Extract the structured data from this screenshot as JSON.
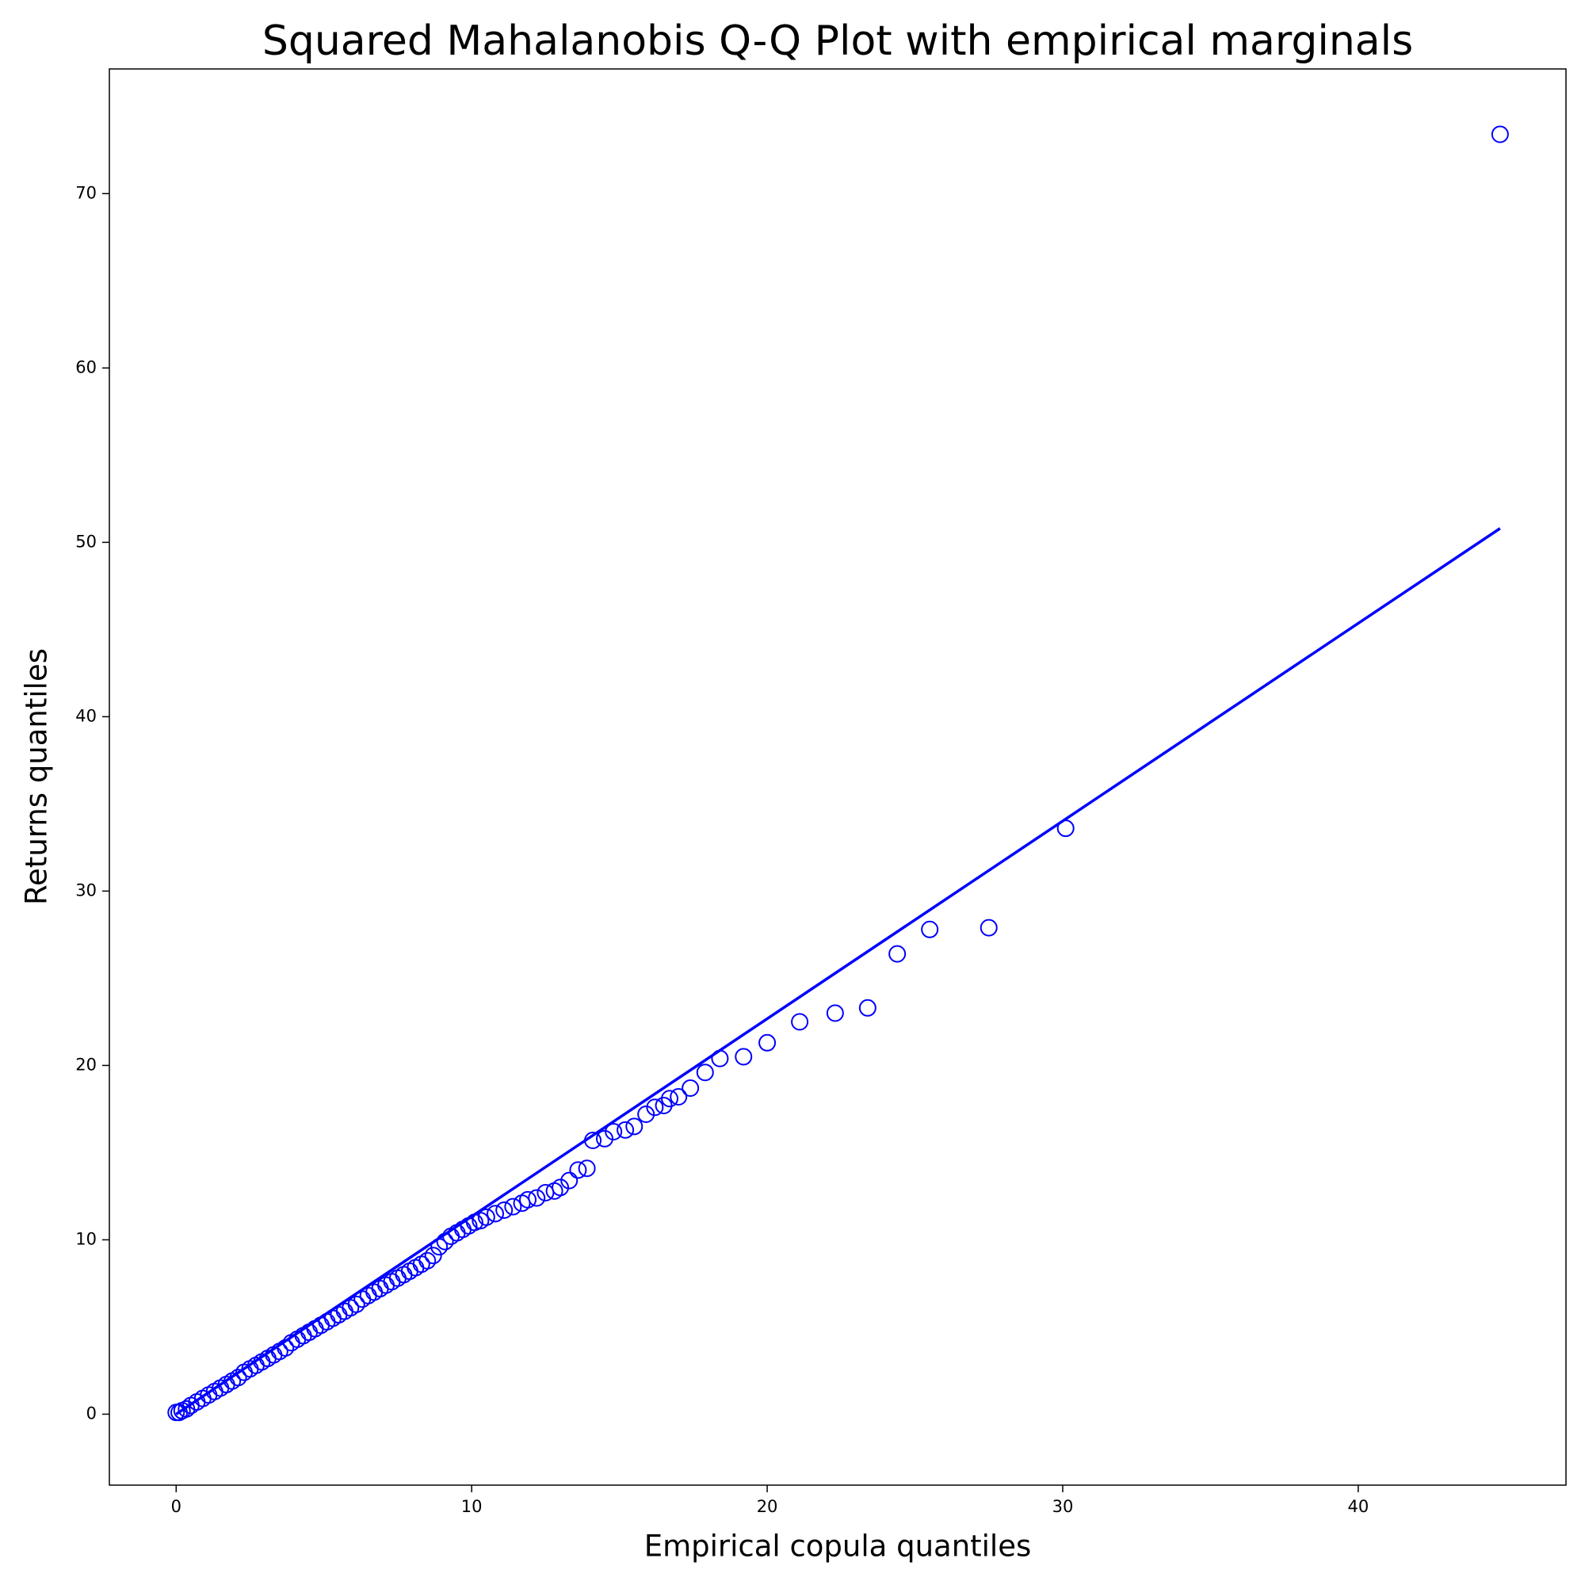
{
  "chart_data": {
    "type": "scatter",
    "title": "Squared Mahalanobis Q-Q Plot with empirical marginals",
    "x_label": "Empirical copula quantiles",
    "y_label": "Returns quantiles",
    "xlim": [
      -2.26,
      47.03
    ],
    "ylim": [
      -4.07,
      77.15
    ],
    "xticks": [
      0,
      10,
      20,
      30,
      40
    ],
    "yticks": [
      0,
      10,
      20,
      30,
      40,
      50,
      60,
      70
    ],
    "grid": false,
    "series": [
      {
        "type": "scatter",
        "color": "#0000ff",
        "x": [
          0,
          0.1,
          0.2,
          0.35,
          0.5,
          0.7,
          0.9,
          1.1,
          1.3,
          1.5,
          1.7,
          1.9,
          2.1,
          2.3,
          2.5,
          2.7,
          2.9,
          3.1,
          3.3,
          3.5,
          3.7,
          3.9,
          4.1,
          4.3,
          4.5,
          4.7,
          4.9,
          5.1,
          5.3,
          5.5,
          5.7,
          5.9,
          6.1,
          6.3,
          6.5,
          6.7,
          6.9,
          7.1,
          7.3,
          7.5,
          7.7,
          7.9,
          8.1,
          8.3,
          8.5,
          8.7,
          8.9,
          9.1,
          9.3,
          9.5,
          9.7,
          9.9,
          10.1,
          10.3,
          10.5,
          10.8,
          11.1,
          11.4,
          11.7,
          11.9,
          12.2,
          12.5,
          12.8,
          13.0,
          13.3,
          13.6,
          13.9,
          14.1,
          14.5,
          14.8,
          15.2,
          15.5,
          15.9,
          16.2,
          16.5,
          16.7,
          17.0,
          17.4,
          17.9,
          18.4,
          19.2,
          20.0,
          21.1,
          22.3,
          23.4,
          24.4,
          25.5,
          27.5,
          30.1,
          44.8
        ],
        "y": [
          0.1,
          0.1,
          0.2,
          0.3,
          0.5,
          0.7,
          0.9,
          1.1,
          1.3,
          1.5,
          1.7,
          1.9,
          2.1,
          2.4,
          2.6,
          2.8,
          3.0,
          3.2,
          3.4,
          3.6,
          3.8,
          4.1,
          4.3,
          4.5,
          4.7,
          4.9,
          5.1,
          5.3,
          5.5,
          5.7,
          5.9,
          6.1,
          6.3,
          6.6,
          6.8,
          7.0,
          7.2,
          7.4,
          7.6,
          7.8,
          8.0,
          8.2,
          8.4,
          8.6,
          8.8,
          9.1,
          9.6,
          9.9,
          10.2,
          10.4,
          10.6,
          10.8,
          11.0,
          11.1,
          11.3,
          11.5,
          11.7,
          11.9,
          12.1,
          12.3,
          12.4,
          12.7,
          12.8,
          13.0,
          13.4,
          14.0,
          14.1,
          15.7,
          15.8,
          16.2,
          16.3,
          16.5,
          17.2,
          17.6,
          17.7,
          18.1,
          18.2,
          18.7,
          19.6,
          20.4,
          20.5,
          21.3,
          22.5,
          23.0,
          23.3,
          26.4,
          27.8,
          27.9,
          33.6,
          73.4
        ]
      },
      {
        "type": "line",
        "color": "#0000ff",
        "x": [
          0,
          44.8
        ],
        "y": [
          0,
          50.8
        ]
      }
    ]
  }
}
